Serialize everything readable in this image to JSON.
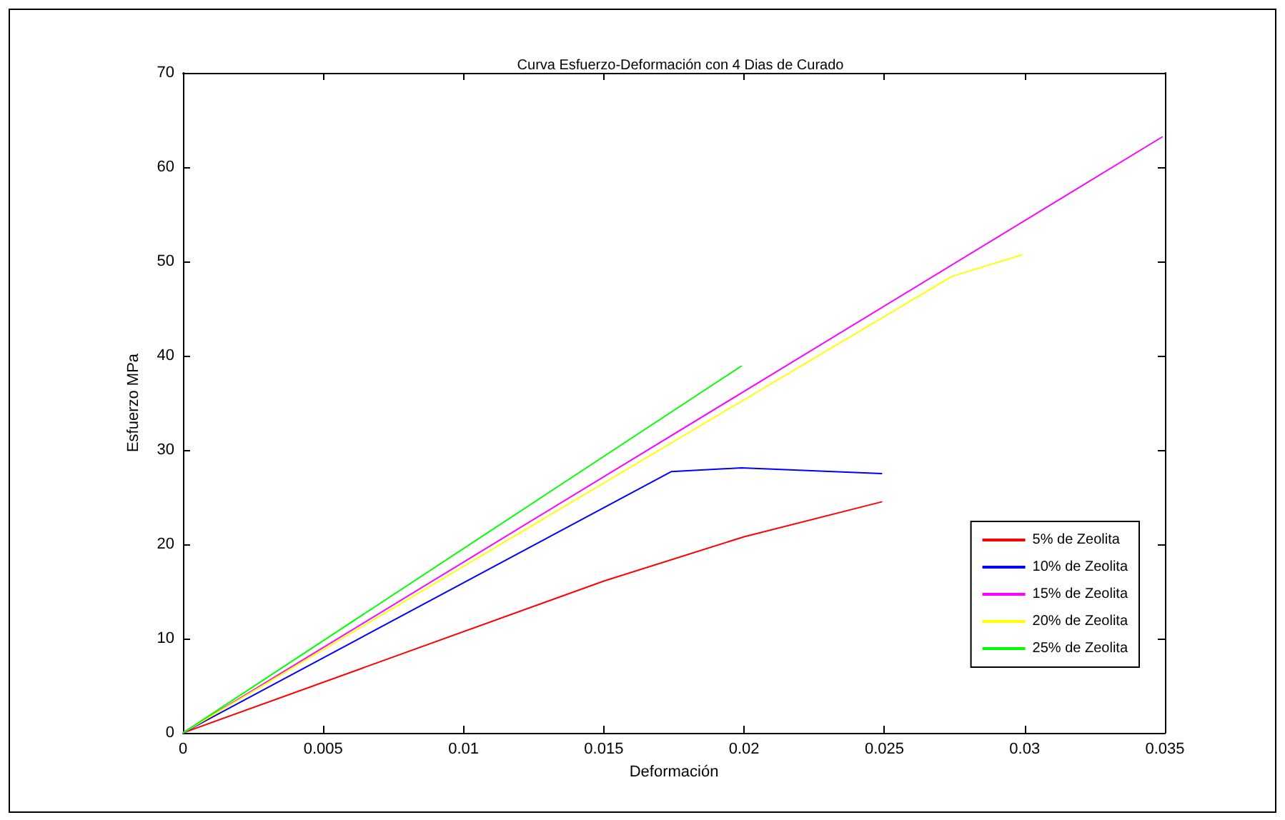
{
  "chart_data": {
    "type": "line",
    "title": "Curva Esfuerzo-Deformación con 4 Dias de Curado",
    "xlabel": "Deformación",
    "ylabel": "Esfuerzo MPa",
    "series": [
      {
        "name": "5% de Zeolita",
        "color": "#ff0000",
        "x": [
          0,
          0.015,
          0.02,
          0.0249
        ],
        "values": [
          0,
          16.1,
          20.8,
          24.5
        ]
      },
      {
        "name": "10% de Zeolita",
        "color": "#0000ff",
        "x": [
          0,
          0.0174,
          0.0199,
          0.0249
        ],
        "values": [
          0,
          27.7,
          28.1,
          27.5
        ]
      },
      {
        "name": "15% de Zeolita",
        "color": "#ff00ff",
        "x": [
          0,
          0.0349
        ],
        "values": [
          0,
          63.2
        ]
      },
      {
        "name": "20% de Zeolita",
        "color": "#ffff00",
        "x": [
          0,
          0.0274,
          0.0299
        ],
        "values": [
          0,
          48.4,
          50.7
        ]
      },
      {
        "name": "25% de Zeolita",
        "color": "#00ff00",
        "x": [
          0,
          0.0199
        ],
        "values": [
          0,
          38.9
        ]
      }
    ],
    "xlim": [
      0,
      0.035
    ],
    "xticks": [
      0,
      0.005,
      0.01,
      0.015,
      0.02,
      0.025,
      0.03,
      0.035
    ],
    "ylim": [
      0,
      70
    ],
    "yticks": [
      0,
      10,
      20,
      30,
      40,
      50,
      60,
      70
    ],
    "grid": false,
    "legend": "bottom right",
    "marker": "none",
    "line_style": "solid"
  }
}
